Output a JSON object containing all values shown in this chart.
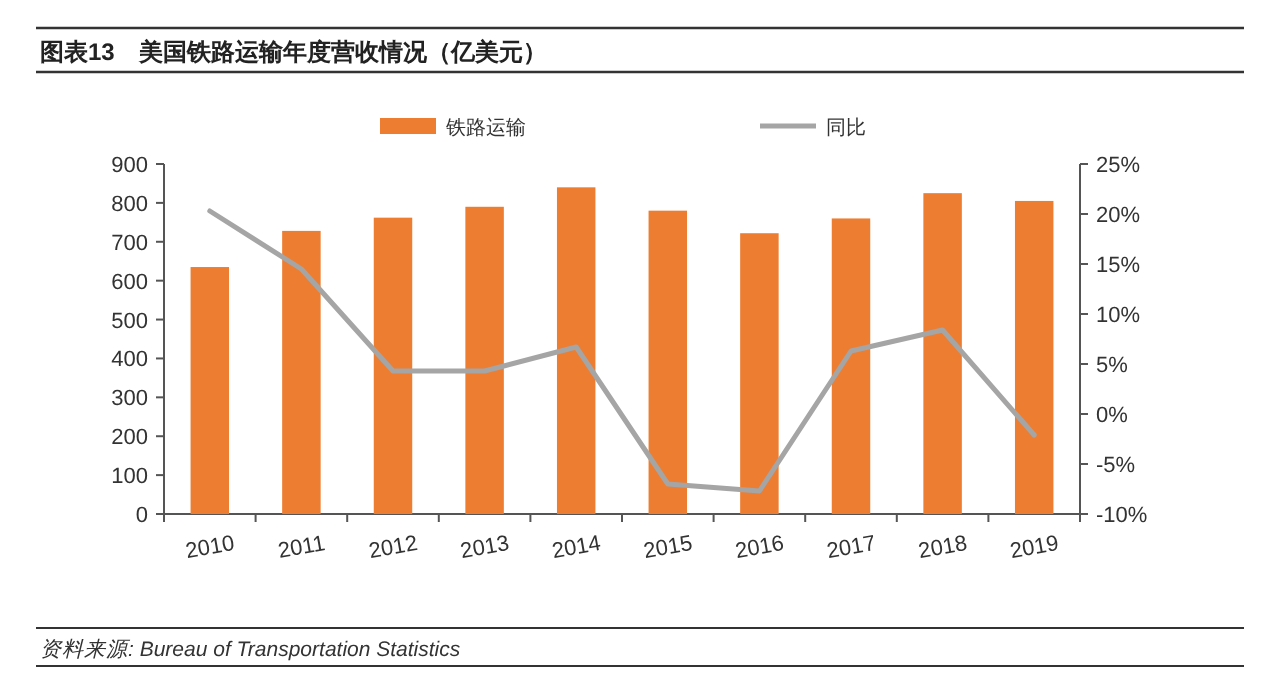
{
  "chart_data": {
    "type": "bar",
    "title": "图表13　美国铁路运输年度营收情况（亿美元）",
    "categories": [
      "2010",
      "2011",
      "2012",
      "2013",
      "2014",
      "2015",
      "2016",
      "2017",
      "2018",
      "2019"
    ],
    "series": [
      {
        "name": "铁路运输",
        "color": "#ed7d31",
        "values": [
          635,
          728,
          762,
          790,
          840,
          780,
          722,
          760,
          825,
          805
        ]
      },
      {
        "name": "同比",
        "type": "line",
        "axis": "y2",
        "color": "#a5a5a5",
        "values": [
          20.3,
          14.5,
          4.3,
          4.3,
          6.7,
          -7.0,
          -7.7,
          6.3,
          8.4,
          -2.1
        ]
      }
    ],
    "ylim": [
      0,
      900
    ],
    "yticks": [
      0,
      100,
      200,
      300,
      400,
      500,
      600,
      700,
      800,
      900
    ],
    "y2lim": [
      -10,
      25
    ],
    "y2ticks": [
      {
        "value": -10,
        "label": "-10%"
      },
      {
        "value": -5,
        "label": "-5%"
      },
      {
        "value": 0,
        "label": "0%"
      },
      {
        "value": 5,
        "label": "5%"
      },
      {
        "value": 10,
        "label": "10%"
      },
      {
        "value": 15,
        "label": "15%"
      },
      {
        "value": 20,
        "label": "20%"
      },
      {
        "value": 25,
        "label": "25%"
      }
    ],
    "legend": "top",
    "grid": false,
    "annotations": [
      "资料来源: Bureau of Transportation Statistics"
    ]
  }
}
